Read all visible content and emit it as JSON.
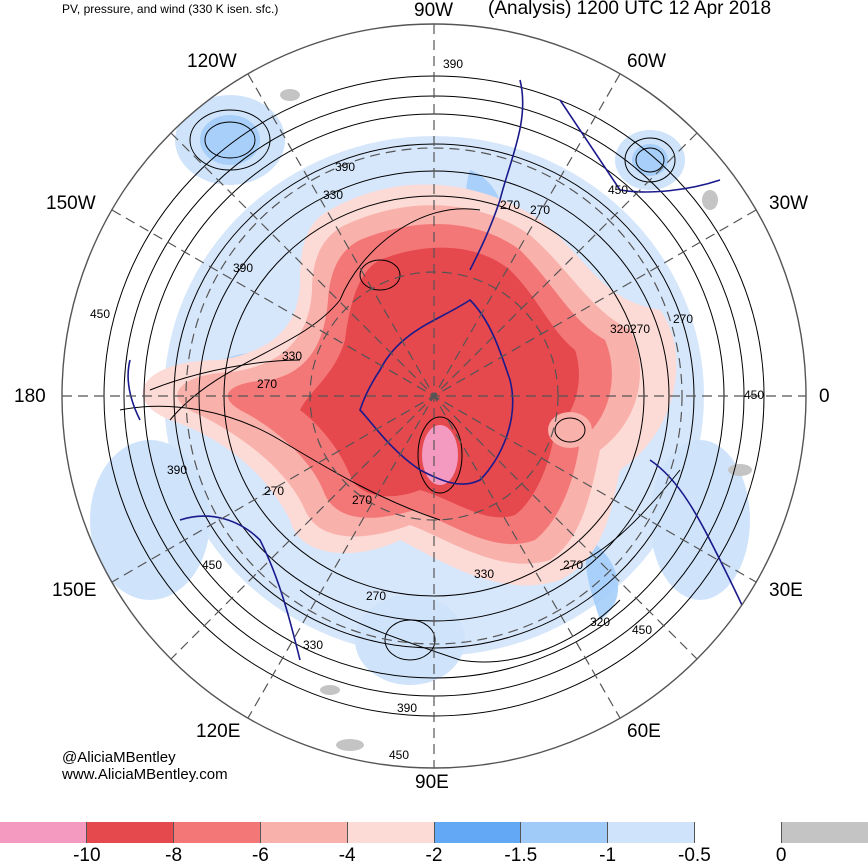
{
  "header": {
    "field_title": "PV, pressure, and wind (330 K isen. sfc.)",
    "analysis_title": "(Analysis) 1200 UTC 12 Apr 2018"
  },
  "longitude_labels": {
    "w90": "90W",
    "w120": "120W",
    "w60": "60W",
    "w150": "150W",
    "w30": "30W",
    "d180": "180",
    "d0": "0",
    "e150": "150E",
    "e30": "30E",
    "e120": "120E",
    "e60": "60E",
    "e90": "90E"
  },
  "contour_labels": [
    "390",
    "450",
    "390",
    "330",
    "390",
    "450",
    "330",
    "270",
    "270",
    "270",
    "320",
    "270",
    "450",
    "390",
    "270",
    "270",
    "450",
    "270",
    "330",
    "320",
    "450",
    "330",
    "270",
    "390",
    "450",
    "270"
  ],
  "credits": {
    "handle": "@AliciaMBentley",
    "website": "www.AliciaMBentley.com"
  },
  "legend": {
    "colors": [
      "#f49ac1",
      "#e5484d",
      "#f47778",
      "#f9b1ab",
      "#fcdad6",
      "#62a8f5",
      "#a0cbf9",
      "#cfe3fb",
      "#ffffff",
      "#c4c4c4"
    ],
    "tick_labels": [
      "-10",
      "-8",
      "-6",
      "-4",
      "-2",
      "-1.5",
      "-1",
      "-0.5",
      "0"
    ]
  },
  "colors": {
    "coastline": "#1a1a8c",
    "contour": "#000000",
    "graticule": "#555555"
  }
}
